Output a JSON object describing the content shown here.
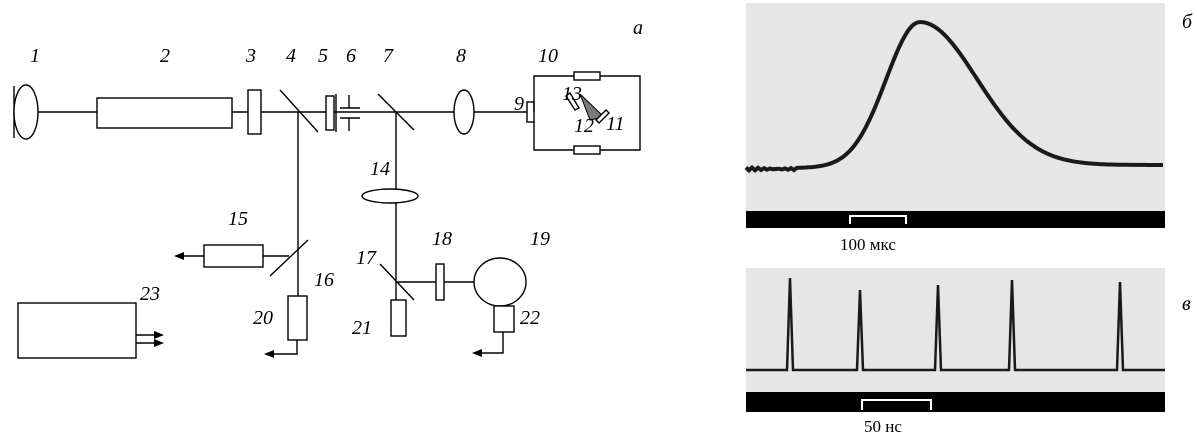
{
  "panel_labels": {
    "a": "а",
    "b": "б",
    "c": "в"
  },
  "component_labels": [
    "1",
    "2",
    "3",
    "4",
    "5",
    "6",
    "7",
    "8",
    "9",
    "10",
    "11",
    "12",
    "13",
    "14",
    "15",
    "16",
    "17",
    "18",
    "19",
    "20",
    "21",
    "22",
    "23"
  ],
  "scale_b": "100 мкс",
  "scale_c": "50 нс",
  "colors": {
    "scope_bg": "#e6e6e6",
    "trace": "#1a1a1a",
    "bar": "#000000",
    "prism": "#7a7a7a"
  },
  "icons": [
    "output-arrow-icon",
    "prism-icon"
  ]
}
